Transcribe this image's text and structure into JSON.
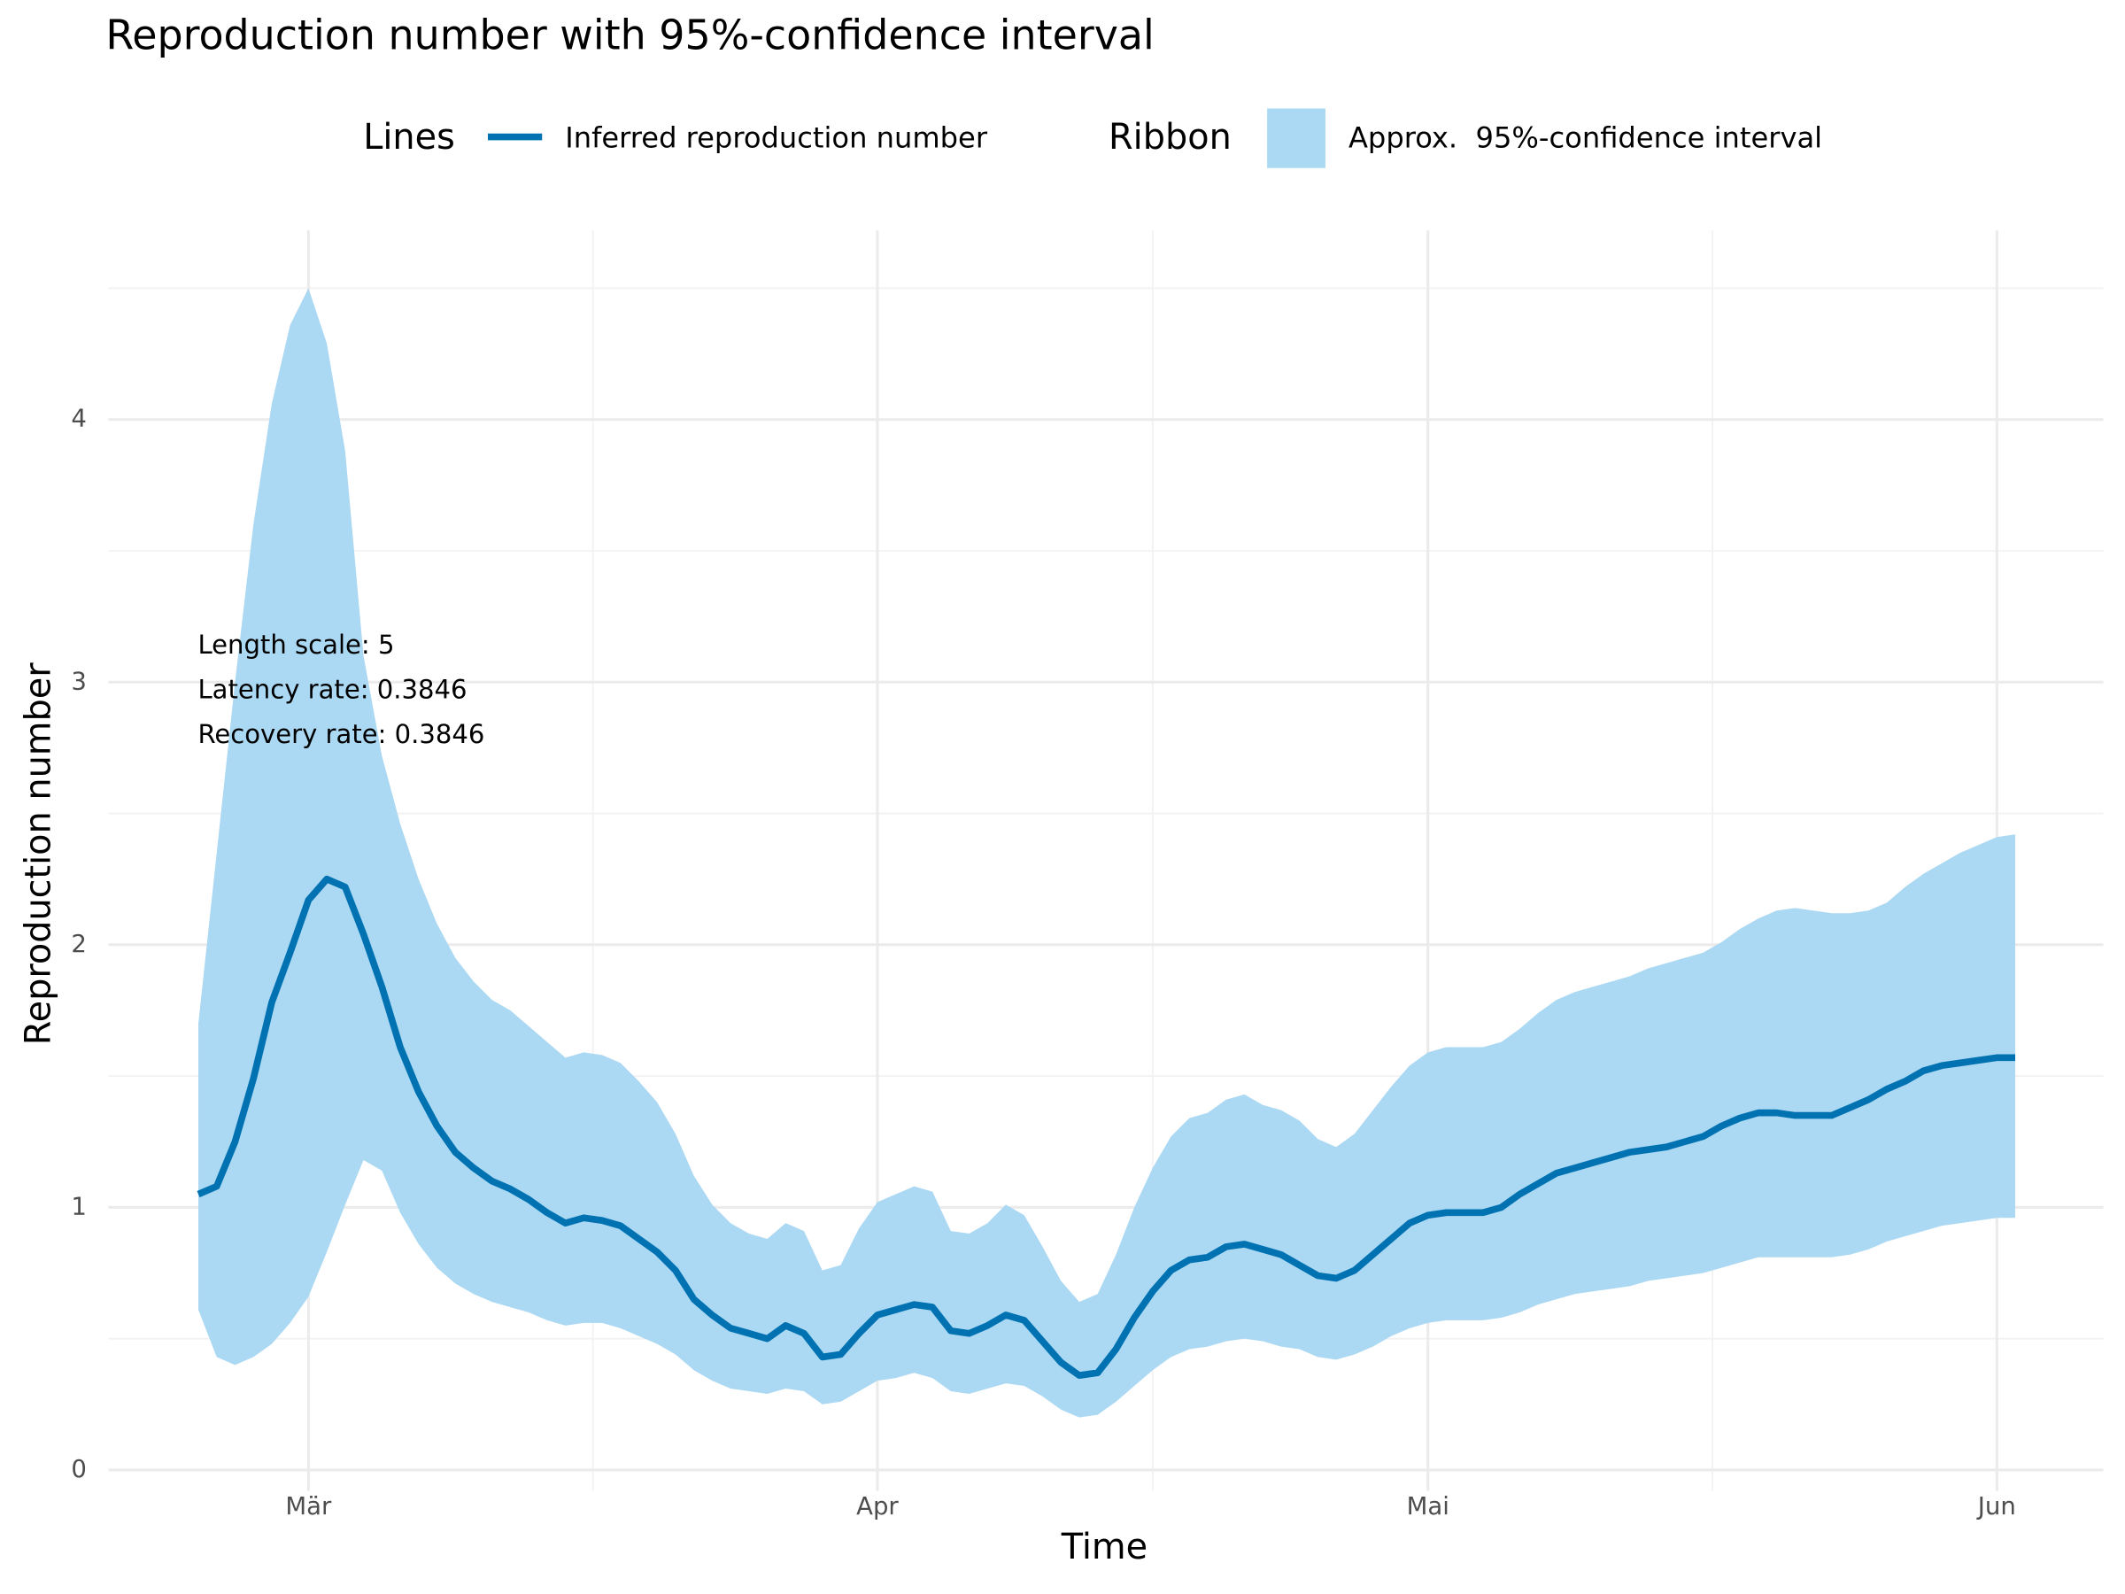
{
  "chart_data": {
    "type": "line",
    "title": "Reproduction number with 95%-confidence interval",
    "xlabel": "Time",
    "ylabel": "Reproduction number",
    "legend_titles": {
      "lines": "Lines",
      "ribbon": "Ribbon"
    },
    "annotations": [
      "Length scale: 5",
      "Latency rate: 0.3846",
      "Recovery rate: 0.3846"
    ],
    "x": [
      -6,
      -5,
      -4,
      -3,
      -2,
      -1,
      0,
      1,
      2,
      3,
      4,
      5,
      6,
      7,
      8,
      9,
      10,
      11,
      12,
      13,
      14,
      15,
      16,
      17,
      18,
      19,
      20,
      21,
      22,
      23,
      24,
      25,
      26,
      27,
      28,
      29,
      30,
      31,
      32,
      33,
      34,
      35,
      36,
      37,
      38,
      39,
      40,
      41,
      42,
      43,
      44,
      45,
      46,
      47,
      48,
      49,
      50,
      51,
      52,
      53,
      54,
      55,
      56,
      57,
      58,
      59,
      60,
      61,
      62,
      63,
      64,
      65,
      66,
      67,
      68,
      69,
      70,
      71,
      72,
      73,
      74,
      75,
      76,
      77,
      78,
      79,
      80,
      81,
      82,
      83,
      84,
      85,
      86,
      87,
      88,
      89,
      90,
      91,
      92,
      93
    ],
    "series": [
      {
        "name": "Inferred reproduction number",
        "color": "#0072b2",
        "values": [
          1.05,
          1.08,
          1.25,
          1.49,
          1.78,
          1.97,
          2.17,
          2.25,
          2.22,
          2.04,
          1.84,
          1.61,
          1.44,
          1.31,
          1.21,
          1.15,
          1.1,
          1.07,
          1.03,
          0.98,
          0.94,
          0.96,
          0.95,
          0.93,
          0.88,
          0.83,
          0.76,
          0.65,
          0.59,
          0.54,
          0.52,
          0.5,
          0.55,
          0.52,
          0.43,
          0.44,
          0.52,
          0.59,
          0.61,
          0.63,
          0.62,
          0.53,
          0.52,
          0.55,
          0.59,
          0.57,
          0.49,
          0.41,
          0.36,
          0.37,
          0.46,
          0.58,
          0.68,
          0.76,
          0.8,
          0.81,
          0.85,
          0.86,
          0.84,
          0.82,
          0.78,
          0.74,
          0.73,
          0.76,
          0.82,
          0.88,
          0.94,
          0.97,
          0.98,
          0.98,
          0.98,
          1.0,
          1.05,
          1.09,
          1.13,
          1.15,
          1.17,
          1.19,
          1.21,
          1.22,
          1.23,
          1.25,
          1.27,
          1.31,
          1.34,
          1.36,
          1.36,
          1.35,
          1.35,
          1.35,
          1.38,
          1.41,
          1.45,
          1.48,
          1.52,
          1.54,
          1.55,
          1.56,
          1.57,
          1.57
        ]
      }
    ],
    "ribbon": {
      "name": "Approx.  95%-confidence interval",
      "color": "#abd8f2",
      "lower": [
        0.61,
        0.43,
        0.4,
        0.43,
        0.48,
        0.56,
        0.66,
        0.83,
        1.01,
        1.18,
        1.14,
        0.98,
        0.86,
        0.77,
        0.71,
        0.67,
        0.64,
        0.62,
        0.6,
        0.57,
        0.55,
        0.56,
        0.56,
        0.54,
        0.51,
        0.48,
        0.44,
        0.38,
        0.34,
        0.31,
        0.3,
        0.29,
        0.31,
        0.3,
        0.25,
        0.26,
        0.3,
        0.34,
        0.35,
        0.37,
        0.35,
        0.3,
        0.29,
        0.31,
        0.33,
        0.32,
        0.28,
        0.23,
        0.2,
        0.21,
        0.26,
        0.32,
        0.38,
        0.43,
        0.46,
        0.47,
        0.49,
        0.5,
        0.49,
        0.47,
        0.46,
        0.43,
        0.42,
        0.44,
        0.47,
        0.51,
        0.54,
        0.56,
        0.57,
        0.57,
        0.57,
        0.58,
        0.6,
        0.63,
        0.65,
        0.67,
        0.68,
        0.69,
        0.7,
        0.72,
        0.73,
        0.74,
        0.75,
        0.77,
        0.79,
        0.81,
        0.81,
        0.81,
        0.81,
        0.81,
        0.82,
        0.84,
        0.87,
        0.89,
        0.91,
        0.93,
        0.94,
        0.95,
        0.96,
        0.96
      ],
      "upper": [
        1.7,
        2.35,
        3.0,
        3.6,
        4.06,
        4.36,
        4.5,
        4.29,
        3.88,
        3.1,
        2.72,
        2.46,
        2.25,
        2.08,
        1.95,
        1.86,
        1.79,
        1.75,
        1.69,
        1.63,
        1.57,
        1.59,
        1.58,
        1.55,
        1.48,
        1.4,
        1.28,
        1.12,
        1.01,
        0.94,
        0.9,
        0.88,
        0.94,
        0.91,
        0.76,
        0.78,
        0.92,
        1.02,
        1.05,
        1.08,
        1.06,
        0.91,
        0.9,
        0.94,
        1.01,
        0.97,
        0.85,
        0.72,
        0.64,
        0.67,
        0.82,
        1.0,
        1.15,
        1.27,
        1.34,
        1.36,
        1.41,
        1.43,
        1.39,
        1.37,
        1.33,
        1.26,
        1.23,
        1.28,
        1.37,
        1.46,
        1.54,
        1.59,
        1.61,
        1.61,
        1.61,
        1.63,
        1.68,
        1.74,
        1.79,
        1.82,
        1.84,
        1.86,
        1.88,
        1.91,
        1.93,
        1.95,
        1.97,
        2.01,
        2.06,
        2.1,
        2.13,
        2.14,
        2.13,
        2.12,
        2.12,
        2.13,
        2.16,
        2.22,
        2.27,
        2.31,
        2.35,
        2.38,
        2.41,
        2.42
      ]
    },
    "xlim": [
      -10.9,
      97.8
    ],
    "ylim": [
      -0.08,
      4.72
    ],
    "xticks": [
      {
        "value": 0,
        "label": "Mär"
      },
      {
        "value": 31,
        "label": "Apr"
      },
      {
        "value": 61,
        "label": "Mai"
      },
      {
        "value": 92,
        "label": "Jun"
      }
    ],
    "xminor": [
      15.5,
      46,
      76.5
    ],
    "yticks": [
      0,
      1,
      2,
      3,
      4
    ],
    "yminor": [
      0.5,
      1.5,
      2.5,
      3.5,
      4.5
    ],
    "grid": true
  }
}
